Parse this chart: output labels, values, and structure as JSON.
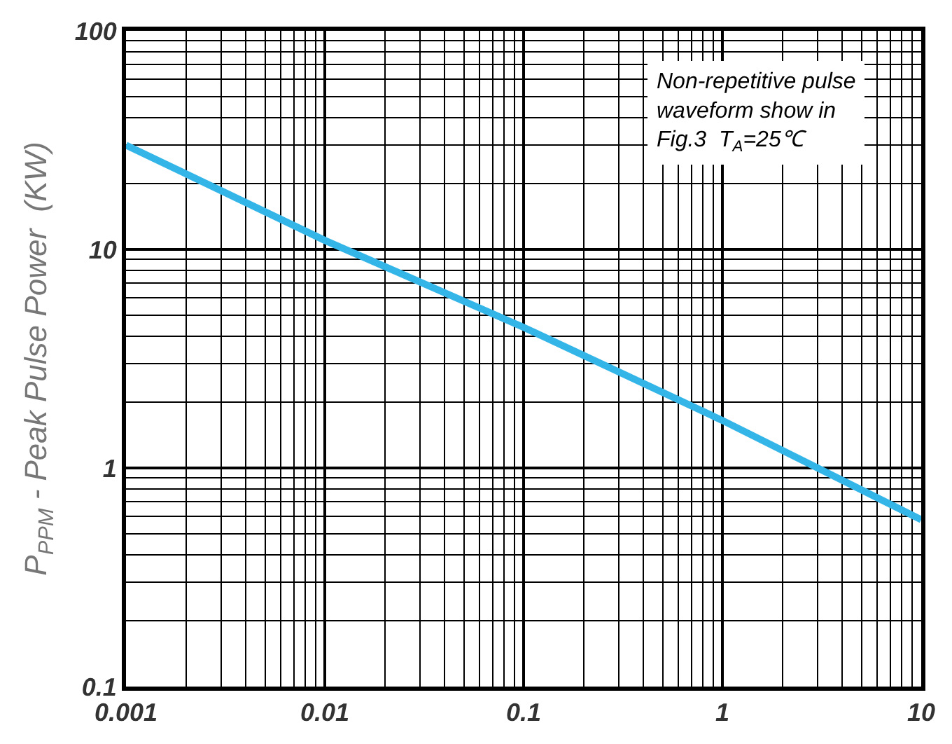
{
  "chart_data": {
    "type": "line",
    "ylabel": "P$_{PPM}$ - Peak Pulse Power  (KW)",
    "annotations": [
      "Non-repetitive pulse\nwaveform show in\nFig.3  T$_{A}$=25℃"
    ],
    "x": [
      0.001,
      0.01,
      0.1,
      1,
      10
    ],
    "series": [
      {
        "color": "#33b5e8",
        "values": [
          30,
          11,
          4.4,
          1.65,
          0.58
        ]
      }
    ],
    "log": "xy",
    "xlim": [
      0.001,
      10
    ],
    "ylim": [
      0.1,
      100
    ],
    "xticks": [
      0.001,
      0.01,
      0.1,
      1,
      10
    ],
    "yticks": [
      0.1,
      1,
      10,
      100
    ],
    "grid": true,
    "marker": "none",
    "line_style": "solid"
  }
}
